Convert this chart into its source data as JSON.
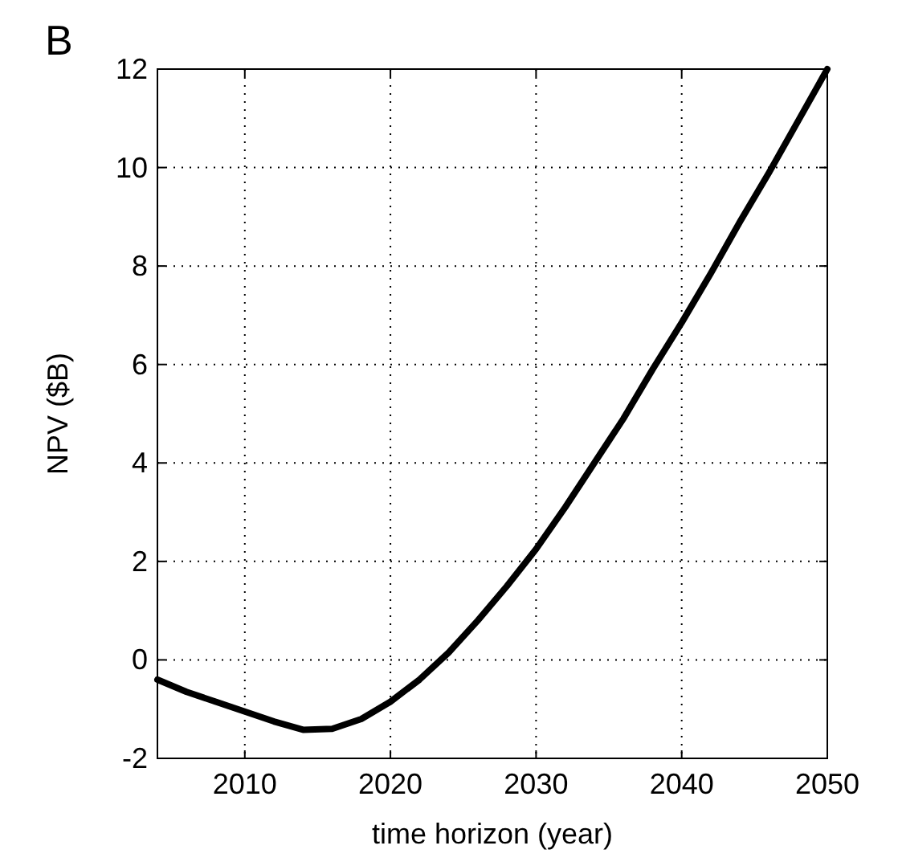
{
  "chart_data": {
    "type": "line",
    "xlabel": "time horizon (year)",
    "ylabel": "NPV ($B)",
    "annotations": [
      "B"
    ],
    "x": [
      2004,
      2006,
      2008,
      2010,
      2012,
      2014,
      2016,
      2018,
      2020,
      2022,
      2024,
      2026,
      2028,
      2030,
      2032,
      2034,
      2036,
      2038,
      2040,
      2042,
      2044,
      2046,
      2048,
      2050
    ],
    "series": [
      {
        "color": "#000000",
        "values": [
          -0.4,
          -0.65,
          -0.85,
          -1.05,
          -1.25,
          -1.42,
          -1.4,
          -1.2,
          -0.85,
          -0.4,
          0.15,
          0.8,
          1.5,
          2.25,
          3.1,
          4.0,
          4.9,
          5.9,
          6.85,
          7.85,
          8.9,
          9.9,
          10.95,
          12.0
        ]
      }
    ],
    "xlim": [
      2004,
      2050
    ],
    "ylim": [
      -2,
      12
    ],
    "xticks": [
      2010,
      2020,
      2030,
      2040,
      2050
    ],
    "yticks": [
      -2,
      0,
      2,
      4,
      6,
      8,
      10,
      12
    ],
    "grid": true,
    "line_style": "solid",
    "marker": "none"
  }
}
